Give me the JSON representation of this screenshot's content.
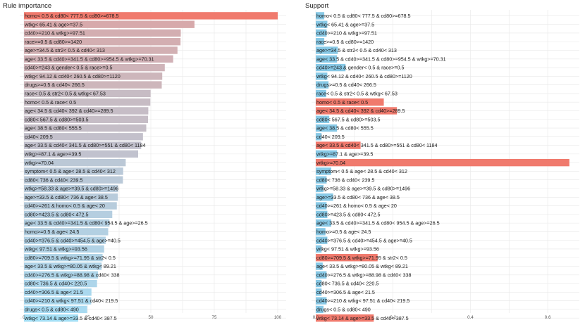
{
  "chart_data": [
    {
      "type": "bar",
      "orientation": "horizontal",
      "title": "Rule importance",
      "xlim": [
        0,
        100
      ],
      "xticks": [
        "0",
        "25",
        "50",
        "75",
        "100"
      ],
      "grid": true,
      "categories": [
        "homo< 0.5 & cd80< 777.5 & cd80>=678.5",
        "wtkg< 65.41 & age>=37.5",
        "cd40>=210 & wtkg>=97.51",
        "race>=0.5 & cd80>=1420",
        "age>=34.5 & str2< 0.5 & cd40< 313",
        "age< 33.5 & cd40>=341.5 & cd80>=954.5 & wtkg>=70.31",
        "cd40>=243 & gender< 0.5 & race>=0.5",
        "wtkg< 94.12 & cd40< 260.5 & cd80>=1120",
        "drugs>=0.5 & cd40< 266.5",
        "race< 0.5 & str2< 0.5 & wtkg< 67.53",
        "homo< 0.5 & race< 0.5",
        "age< 34.5 & cd40< 392 & cd40>=289.5",
        "cd80< 567.5 & cd80>=503.5",
        "age< 38.5 & cd80< 555.5",
        "cd40< 209.5",
        "age< 33.5 & cd40< 341.5 & cd80>=551 & cd80< 1184",
        "wtkg>=87.1 & age>=39.5",
        "wtkg>=70.04",
        "symptom< 0.5 & age< 28.5 & cd40< 312",
        "cd80< 736 & cd40< 239.5",
        "wtkg>=58.33 & age>=39.5 & cd80>=1496",
        "age>=33.5 & cd80< 736 & age< 38.5",
        "cd40>=261 & homo< 0.5 & age< 20",
        "cd80>=423.5 & cd80< 472.5",
        "age< 33.5 & cd40>=341.5 & cd80< 954.5 & age>=26.5",
        "homo>=0.5 & age< 24.5",
        "cd40>=376.5 & cd40>=454.5 & age>=40.5",
        "wtkg< 97.51 & wtkg>=93.56",
        "cd80>=709.5 & wtkg>=71.95 & str2< 0.5",
        "age< 33.5 & wtkg>=80.05 & wtkg< 89.21",
        "cd40>=276.5 & wtkg>=88.98 & cd40< 338",
        "cd80< 736.5 & cd40< 220.5",
        "cd40>=306.5 & age< 21.5",
        "cd40>=210 & wtkg< 97.51 & cd40< 219.5",
        "drugs< 0.5 & cd80< 490",
        "wtkg< 73.14 & age>=33.5 & cd40< 387.5"
      ],
      "values": [
        100,
        67.2,
        61.8,
        61.7,
        60.5,
        58.8,
        55.5,
        54.5,
        54.3,
        49.9,
        49.8,
        49.0,
        48.9,
        48.2,
        46.9,
        46.2,
        45.0,
        40.1,
        39.1,
        39.0,
        37.1,
        37.0,
        36.6,
        34.8,
        33.7,
        33.2,
        32.2,
        31.6,
        31.0,
        30.6,
        29.2,
        28.8,
        26.6,
        26.5,
        24.9,
        21.4
      ],
      "colors": [
        "#f07a6d",
        "#d7a9ab",
        "#d3aeb1",
        "#d3aeb1",
        "#d2b0b3",
        "#d1b1b6",
        "#cfb4b9",
        "#cdb6bb",
        "#cdb6bb",
        "#c7bcc4",
        "#c7bcc4",
        "#c6bdc6",
        "#c6bdc6",
        "#c5bec7",
        "#c3c0cb",
        "#c2c1cd",
        "#c1c2ce",
        "#bbc8d6",
        "#bac9d8",
        "#bac9d8",
        "#b8cbdb",
        "#b8cbdb",
        "#b7ccdc",
        "#b5cee0",
        "#b3cfe1",
        "#b3d0e2",
        "#b2d1e4",
        "#b1d2e5",
        "#b0d3e6",
        "#b0d3e7",
        "#aed5e9",
        "#add5ea",
        "#aad8ee",
        "#aad8ee",
        "#a8daf1",
        "#a4dff5"
      ]
    },
    {
      "type": "bar",
      "orientation": "horizontal",
      "title": "Support",
      "xlim": [
        0,
        0.66
      ],
      "xticks": [
        "0.0",
        "0.2",
        "0.4",
        "0.6"
      ],
      "grid": true,
      "categories": [
        "homo< 0.5 & cd80< 777.5 & cd80>=678.5",
        "wtkg< 65.41 & age>=37.5",
        "cd40>=210 & wtkg>=97.51",
        "race>=0.5 & cd80>=1420",
        "age>=34.5 & str2< 0.5 & cd40< 313",
        "age< 33.5 & cd40>=341.5 & cd80>=954.5 & wtkg>=70.31",
        "cd40>=243 & gender< 0.5 & race>=0.5",
        "wtkg< 94.12 & cd40< 260.5 & cd80>=1120",
        "drugs>=0.5 & cd40< 266.5",
        "race< 0.5 & str2< 0.5 & wtkg< 67.53",
        "homo< 0.5 & race< 0.5",
        "age< 34.5 & cd40< 392 & cd40>=289.5",
        "cd80< 567.5 & cd80>=503.5",
        "age< 38.5 & cd80< 555.5",
        "cd40< 209.5",
        "age< 33.5 & cd40< 341.5 & cd80>=551 & cd80< 1184",
        "wtkg>=87.1 & age>=39.5",
        "wtkg>=70.04",
        "symptom< 0.5 & age< 28.5 & cd40< 312",
        "cd80< 736 & cd40< 239.5",
        "wtkg>=58.33 & age>=39.5 & cd80>=1496",
        "age>=33.5 & cd80< 736 & age< 38.5",
        "cd40>=261 & homo< 0.5 & age< 20",
        "cd80>=423.5 & cd80< 472.5",
        "age< 33.5 & cd40>=341.5 & cd80< 954.5 & age>=26.5",
        "homo>=0.5 & age< 24.5",
        "cd40>=376.5 & cd40>=454.5 & age>=40.5",
        "wtkg< 97.51 & wtkg>=93.56",
        "cd80>=709.5 & wtkg>=71.95 & str2< 0.5",
        "age< 33.5 & wtkg>=80.05 & wtkg< 89.21",
        "cd40>=276.5 & wtkg>=88.98 & cd40< 338",
        "cd80< 736.5 & cd40< 220.5",
        "cd40>=306.5 & age< 21.5",
        "cd40>=210 & wtkg< 97.51 & cd40< 219.5",
        "drugs< 0.5 & cd80< 490",
        "wtkg< 73.14 & age>=33.5 & cd40< 387.5"
      ],
      "values": [
        0.022,
        0.03,
        0.028,
        0.022,
        0.057,
        0.055,
        0.077,
        0.03,
        0.033,
        0.027,
        0.176,
        0.21,
        0.035,
        0.055,
        0.015,
        0.116,
        0.055,
        0.656,
        0.04,
        0.028,
        0.02,
        0.045,
        0.028,
        0.03,
        0.04,
        0.025,
        0.03,
        0.015,
        0.16,
        0.018,
        0.028,
        0.015,
        0.015,
        0.028,
        0.02,
        0.15
      ],
      "colors": [
        "#88c9e6",
        "#88c9e6",
        "#88c9e6",
        "#88c9e6",
        "#88c9e6",
        "#88c9e6",
        "#88c9e6",
        "#88c9e6",
        "#88c9e6",
        "#88c9e6",
        "#f07a6d",
        "#f07a6d",
        "#88c9e6",
        "#88c9e6",
        "#88c9e6",
        "#f07a6d",
        "#88c9e6",
        "#f07a6d",
        "#88c9e6",
        "#88c9e6",
        "#88c9e6",
        "#88c9e6",
        "#88c9e6",
        "#88c9e6",
        "#88c9e6",
        "#88c9e6",
        "#88c9e6",
        "#88c9e6",
        "#f07a6d",
        "#88c9e6",
        "#88c9e6",
        "#88c9e6",
        "#88c9e6",
        "#88c9e6",
        "#88c9e6",
        "#f07a6d"
      ]
    }
  ]
}
